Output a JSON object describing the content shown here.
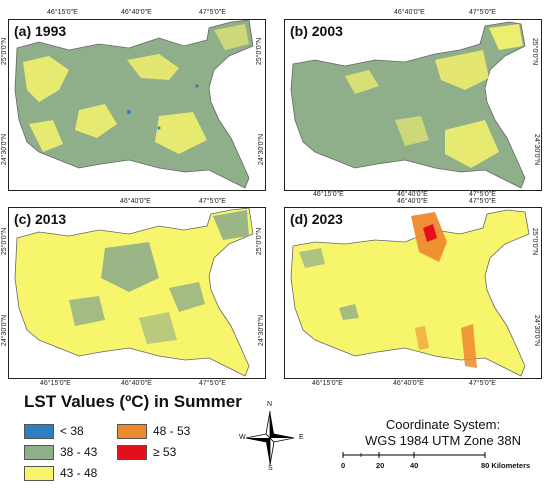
{
  "panels": [
    {
      "label": "(a) 1993",
      "year": 1993,
      "dominant_class": "38 - 43"
    },
    {
      "label": "(b) 2003",
      "year": 2003,
      "dominant_class": "38 - 43"
    },
    {
      "label": "(c) 2013",
      "year": 2013,
      "dominant_class": "43 - 48"
    },
    {
      "label": "(d) 2023",
      "year": 2023,
      "dominant_class": "43 - 48"
    }
  ],
  "axis_ticks": {
    "lon": [
      "46°15'0\"E",
      "46°40'0\"E",
      "47°5'0\"E"
    ],
    "lat": [
      "25°0'0\"N",
      "24°30'0\"N"
    ]
  },
  "legend": {
    "title": "LST Values (ºC) in Summer",
    "classes": [
      {
        "label": "< 38",
        "color": "#2e7fc1"
      },
      {
        "label": "38 - 43",
        "color": "#8fae8a"
      },
      {
        "label": "43 - 48",
        "color": "#f7f56c"
      },
      {
        "label": "48 - 53",
        "color": "#ee8a2e"
      },
      {
        "label": "≥ 53",
        "color": "#e3101c"
      }
    ]
  },
  "north_arrow": {
    "n": "N",
    "s": "S",
    "e": "E",
    "w": "W"
  },
  "coordinate_system": {
    "line1": "Coordinate System:",
    "line2": "WGS 1984 UTM Zone 38N"
  },
  "scale_bar": {
    "labels": [
      "0",
      "20",
      "40",
      "80 Kilometers"
    ]
  }
}
